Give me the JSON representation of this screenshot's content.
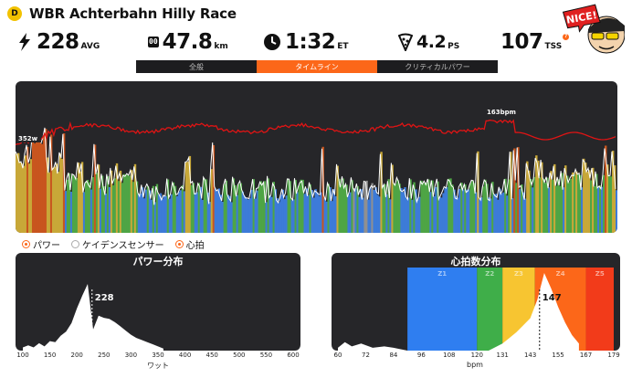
{
  "header": {
    "category": "D",
    "title": "WBR Achterbahn Hilly Race"
  },
  "stats": {
    "avg_power": {
      "value": "228",
      "unit": "AVG",
      "icon": "lightning-icon"
    },
    "distance": {
      "value": "47.8",
      "unit": "km",
      "icon": "odometer-icon",
      "icon_text": "00"
    },
    "time": {
      "value": "1:32",
      "unit": "ET",
      "icon": "clock-icon"
    },
    "ps": {
      "value": "4.2",
      "unit": "PS",
      "icon": "pizza-icon"
    },
    "tss": {
      "value": "107",
      "unit": "TSS",
      "icon": "tss-info-icon",
      "badge": "?"
    }
  },
  "mascot": {
    "text": "NICE!"
  },
  "tabs": [
    {
      "label": "全般",
      "active": false
    },
    {
      "label": "タイムライン",
      "active": true
    },
    {
      "label": "クリティカルパワー",
      "active": false
    }
  ],
  "main_chart": {
    "power_label": "352w",
    "hr_label": "163bpm",
    "colors": {
      "hr": "#e01414",
      "power_line": "#ffffff",
      "z1": "#909090",
      "z2": "#3d7bd8",
      "z3": "#4ea545",
      "z4": "#c8a838",
      "z5": "#c8551e"
    }
  },
  "legend": [
    {
      "label": "パワー",
      "on": true
    },
    {
      "label": "ケイデンスセンサー",
      "on": false
    },
    {
      "label": "心拍",
      "on": true
    }
  ],
  "power_dist": {
    "title": "パワー分布",
    "avg_label": "228",
    "xlabel": "ワット",
    "ticks": [
      "100",
      "150",
      "200",
      "250",
      "300",
      "350",
      "400",
      "450",
      "500",
      "550",
      "600"
    ]
  },
  "hr_dist": {
    "title": "心拍数分布",
    "avg_label": "147",
    "xlabel": "bpm",
    "ticks": [
      "60",
      "72",
      "84",
      "96",
      "108",
      "120",
      "131",
      "143",
      "155",
      "167",
      "179"
    ],
    "zones": [
      {
        "label": "Z1",
        "color": "#2f7ef0"
      },
      {
        "label": "Z2",
        "color": "#3fae49"
      },
      {
        "label": "Z3",
        "color": "#f7c531"
      },
      {
        "label": "Z4",
        "color": "#fc6719"
      },
      {
        "label": "Z5",
        "color": "#f23b1a"
      }
    ]
  },
  "chart_data": {
    "type": "area",
    "power_distribution": {
      "x_unit": "W",
      "x": [
        100,
        110,
        120,
        130,
        140,
        150,
        160,
        170,
        180,
        190,
        200,
        210,
        220,
        230,
        240,
        250,
        260,
        270,
        280,
        290,
        300,
        310,
        320,
        330,
        340,
        350,
        360
      ],
      "y": [
        3,
        5,
        3,
        7,
        4,
        9,
        8,
        14,
        18,
        26,
        40,
        52,
        63,
        20,
        33,
        31,
        30,
        27,
        23,
        19,
        15,
        12,
        10,
        8,
        6,
        4,
        2
      ],
      "average": 228,
      "xlim": [
        100,
        600
      ]
    },
    "hr_distribution": {
      "x_unit": "bpm",
      "x": [
        60,
        63,
        66,
        70,
        75,
        80,
        84,
        90,
        96,
        100,
        108,
        114,
        120,
        125,
        131,
        134,
        137,
        140,
        143,
        146,
        149,
        152,
        155,
        158,
        161,
        164
      ],
      "y": [
        2,
        6,
        3,
        5,
        2,
        3,
        2,
        0,
        0,
        0,
        0,
        0,
        0,
        0,
        5,
        9,
        13,
        18,
        23,
        36,
        55,
        44,
        31,
        20,
        11,
        5
      ],
      "average": 147,
      "xlim": [
        60,
        179
      ]
    }
  }
}
